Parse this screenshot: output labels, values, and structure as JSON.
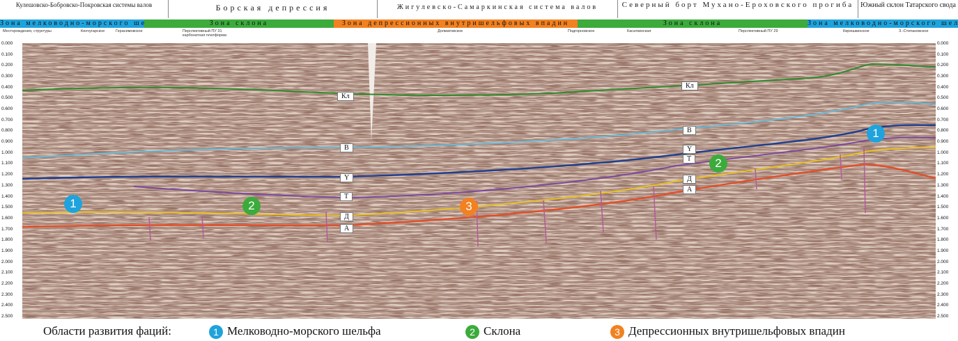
{
  "regions": [
    {
      "label": "Кулешовско-Бобровско-Покровская системы валов"
    },
    {
      "label": "Борская депрессия"
    },
    {
      "label": "Жигулевско-Самаркинская система валов"
    },
    {
      "label": "Северный борт Мухано-Ероховского прогиба"
    },
    {
      "label": "Южный склон Татарского свода"
    }
  ],
  "zones": [
    {
      "label": "Зона мелководно-морского шельфа",
      "color": "#1fa3dc"
    },
    {
      "label": "Зона склона",
      "color": "#3cab3c"
    },
    {
      "label": "Зона депрессионных внутришельфовых впадин",
      "color": "#f28121"
    },
    {
      "label": "Зона склона",
      "color": "#3cab3c"
    },
    {
      "label": "Зона мелководно-морского шельфа",
      "color": "#1fa3dc"
    }
  ],
  "wells": [
    "Месторождения, структуры",
    "Кенчугарское",
    "Герасимовское",
    "Перспективный ПУ 31",
    "карбонатная платформа",
    "Долматовское",
    "Подгорновское",
    "Касаткинская",
    "Перспективный ПУ 29",
    "Кирюшкинское",
    "З.-Степановское"
  ],
  "depth_ticks": [
    "0.000",
    "0.100",
    "0.200",
    "0.300",
    "0.400",
    "0.500",
    "0.600",
    "0.700",
    "0.800",
    "0.900",
    "1.000",
    "1.100",
    "1.200",
    "1.300",
    "1.400",
    "1.500",
    "1.600",
    "1.700",
    "1.800",
    "1.900",
    "2.000",
    "2.100",
    "2.200",
    "2.300",
    "2.400",
    "2.500"
  ],
  "horizon_labels": {
    "kl_left": "Кл",
    "v_left": "В",
    "y_left": "Y",
    "t_left": "T",
    "d_left": "Д",
    "a_left": "А",
    "kl_right": "Кл",
    "v_right": "В",
    "y_right": "Y",
    "t_right": "T",
    "d_right": "Д",
    "a_right": "А"
  },
  "badges": {
    "b1_left": "1",
    "b2_left": "2",
    "b3_mid": "3",
    "b2_right": "2",
    "b1_right": "1"
  },
  "badge_colors": {
    "shelf": "#1fa3dc",
    "slope": "#3cab3c",
    "depression": "#f28121"
  },
  "horizon_colors": {
    "kl": "#2e8b2e",
    "v": "#6ab7d6",
    "y": "#1f3f8f",
    "t": "#7a4aa0",
    "d": "#e8c020",
    "a": "#e0502a"
  },
  "legend": {
    "title": "Области развития фаций:",
    "item1_num": "1",
    "item1": "Мелководно-морского шельфа",
    "item2_num": "2",
    "item2": "Склона",
    "item3_num": "3",
    "item3": "Депрессионных внутришельфовых впадин"
  }
}
